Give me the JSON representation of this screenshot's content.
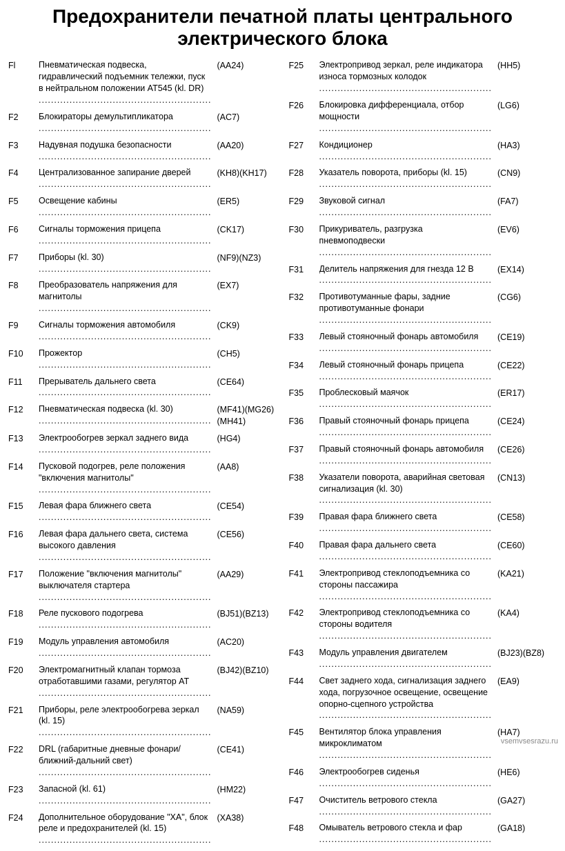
{
  "title": "Предохранители печатной платы центрального электрического блока",
  "watermark": "vsemvsesrazu.ru",
  "left": [
    {
      "id": "Fl",
      "desc": "Пневматическая подвеска, гидравлический подъемник тележки, пуск в нейтральном положении AT545 (kl. DR)",
      "code": "(AA24)"
    },
    {
      "id": "F2",
      "desc": "Блокираторы демультипликатора",
      "code": "(AC7)"
    },
    {
      "id": "F3",
      "desc": "Надувная подушка безопасности",
      "code": "(AA20)"
    },
    {
      "id": "F4",
      "desc": "Централизованное запирание дверей",
      "code": "(KH8)(KH17)"
    },
    {
      "id": "F5",
      "desc": "Освещение кабины",
      "code": "(ER5)"
    },
    {
      "id": "F6",
      "desc": "Сигналы торможения прицепа",
      "code": "(CK17)"
    },
    {
      "id": "F7",
      "desc": "Приборы (kl. 30)",
      "code": "(NF9)(NZ3)"
    },
    {
      "id": "F8",
      "desc": "Преобразователь напряжения для магнитолы",
      "code": "(EX7)"
    },
    {
      "id": "F9",
      "desc": "Сигналы торможения автомобиля",
      "code": "(CK9)"
    },
    {
      "id": "F10",
      "desc": "Прожектор",
      "code": "(CH5)"
    },
    {
      "id": "F11",
      "desc": "Прерыватель дальнего света",
      "code": "(CE64)"
    },
    {
      "id": "F12",
      "desc": "Пневматическая подвеска (kl. 30)",
      "code": "(MF41)(MG26)(MH41)"
    },
    {
      "id": "F13",
      "desc": "Электрообогрев зеркал заднего вида",
      "code": "(HG4)"
    },
    {
      "id": "F14",
      "desc": "Пусковой подогрев, реле положения \"включения магнитолы\"",
      "code": "(AA8)"
    },
    {
      "id": "F15",
      "desc": "Левая фара ближнего света",
      "code": "(CE54)"
    },
    {
      "id": "F16",
      "desc": "Левая фара дальнего света, система высокого давления",
      "code": "(CE56)"
    },
    {
      "id": "F17",
      "desc": "Положение \"включения магнитолы\" выключателя стартера",
      "code": "(AA29)"
    },
    {
      "id": "F18",
      "desc": "Реле пускового подогрева",
      "code": "(BJ51)(BZ13)"
    },
    {
      "id": "F19",
      "desc": "Модуль управления автомобиля",
      "code": "(AC20)"
    },
    {
      "id": "F20",
      "desc": "Электромагнитный клапан тормоза отработавшими газами, регулятор AT",
      "code": "(BJ42)(BZ10)"
    },
    {
      "id": "F21",
      "desc": "Приборы, реле электрообогрева зеркал (kl. 15)",
      "code": "(NA59)"
    },
    {
      "id": "F22",
      "desc": "DRL (габаритные дневные фонари/ближний-дальний свет)",
      "code": "(CE41)"
    },
    {
      "id": "F23",
      "desc": "Запасной (kl. 61)",
      "code": "(HM22)"
    },
    {
      "id": "F24",
      "desc": "Дополнительное оборудование \"XA\", блок реле и предохранителей (kl. 15)",
      "code": "(XA38)"
    }
  ],
  "right": [
    {
      "id": "F25",
      "desc": "Электропривод зеркал, реле индикатора износа тормозных колодок",
      "code": "(HH5)"
    },
    {
      "id": "F26",
      "desc": "Блокировка дифференциала, отбор мощности",
      "code": "(LG6)"
    },
    {
      "id": "F27",
      "desc": "Кондиционер",
      "code": "(HA3)"
    },
    {
      "id": "F28",
      "desc": "Указатель поворота, приборы (kl. 15)",
      "code": "(CN9)"
    },
    {
      "id": "F29",
      "desc": "Звуковой сигнал",
      "code": "(FA7)"
    },
    {
      "id": "F30",
      "desc": "Прикуриватель, разгрузка пневмоподвески",
      "code": "(EV6)"
    },
    {
      "id": "F31",
      "desc": "Делитель напряжения для гнезда 12 В",
      "code": "(EX14)"
    },
    {
      "id": "F32",
      "desc": "Противотуманные фары, задние противотуманные фонари",
      "code": "(CG6)"
    },
    {
      "id": "F33",
      "desc": "Левый стояночный фонарь автомобиля",
      "code": "(CE19)"
    },
    {
      "id": "F34",
      "desc": "Левый стояночный фонарь прицепа",
      "code": "(CE22)"
    },
    {
      "id": "F35",
      "desc": "Проблесковый маячок",
      "code": "(ER17)"
    },
    {
      "id": "F36",
      "desc": "Правый стояночный фонарь прицепа",
      "code": "(CE24)"
    },
    {
      "id": "F37",
      "desc": "Правый стояночный фонарь автомобиля",
      "code": "(CE26)"
    },
    {
      "id": "F38",
      "desc": "Указатели поворота, аварийная световая сигнализация (kl. 30)",
      "code": "(CN13)"
    },
    {
      "id": "F39",
      "desc": "Правая фара ближнего света",
      "code": "(CE58)"
    },
    {
      "id": "F40",
      "desc": "Правая фара дальнего света",
      "code": "(CE60)"
    },
    {
      "id": "F41",
      "desc": "Электропривод стеклоподъемника со стороны пассажира",
      "code": "(KA21)"
    },
    {
      "id": "F42",
      "desc": "Электропривод стеклоподъемника со стороны водителя",
      "code": "(KA4)"
    },
    {
      "id": "F43",
      "desc": "Модуль управления двигателем",
      "code": "(BJ23)(BZ8)"
    },
    {
      "id": "F44",
      "desc": "Свет заднего хода, сигнализация заднего хода, погрузочное освещение, освещение опорно-сцепного устройства",
      "code": "(EA9)"
    },
    {
      "id": "F45",
      "desc": "Вентилятор блока управления микроклиматом",
      "code": "(HA7)"
    },
    {
      "id": "F46",
      "desc": "Электрообогрев сиденья",
      "code": "(HE6)"
    },
    {
      "id": "F47",
      "desc": "Очиститель ветрового стекла",
      "code": "(GA27)"
    },
    {
      "id": "F48",
      "desc": "Омыватель ветрового стекла и фар",
      "code": "(GA18)"
    }
  ]
}
